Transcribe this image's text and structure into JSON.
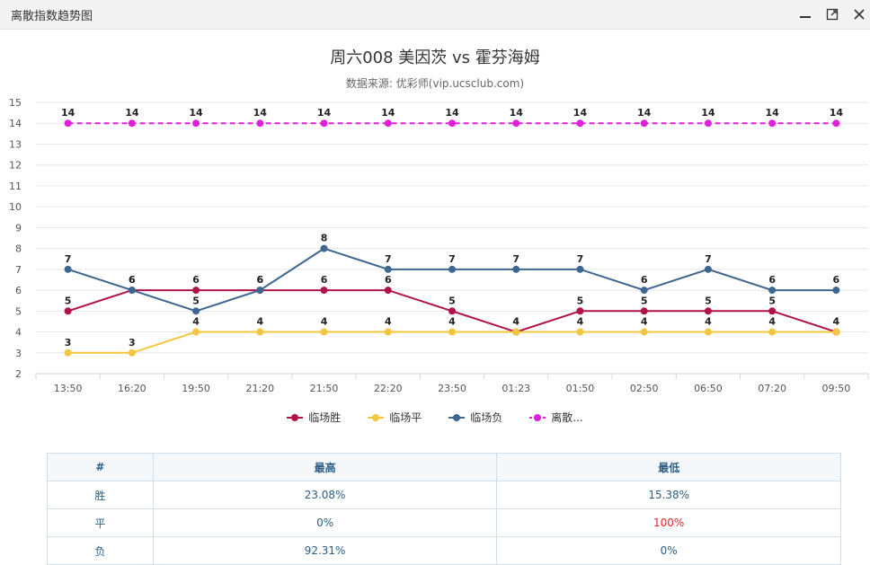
{
  "window": {
    "title": "离散指数趋势图"
  },
  "chart_data": {
    "type": "line",
    "title": "周六008 美因茨 vs 霍芬海姆",
    "subtitle": "数据来源: 优彩师(vip.ucsclub.com)",
    "x": [
      "13:50",
      "16:20",
      "19:50",
      "21:20",
      "21:50",
      "22:20",
      "23:50",
      "01:23",
      "01:50",
      "02:50",
      "06:50",
      "07:20",
      "09:50"
    ],
    "ylim": [
      2,
      15
    ],
    "yticks": [
      2,
      3,
      4,
      5,
      6,
      7,
      8,
      9,
      10,
      11,
      12,
      13,
      14,
      15
    ],
    "grid": true,
    "legend_position": "bottom",
    "series": [
      {
        "name": "临场胜",
        "color": "#b0124a",
        "dashed": false,
        "values": [
          5,
          6,
          6,
          6,
          6,
          6,
          5,
          4,
          5,
          5,
          5,
          5,
          4
        ]
      },
      {
        "name": "临场平",
        "color": "#f2c641",
        "dashed": false,
        "values": [
          3,
          3,
          4,
          4,
          4,
          4,
          4,
          4,
          4,
          4,
          4,
          4,
          4
        ]
      },
      {
        "name": "临场负",
        "color": "#3d6690",
        "dashed": false,
        "values": [
          7,
          6,
          5,
          6,
          8,
          7,
          7,
          7,
          7,
          6,
          7,
          6,
          6
        ]
      },
      {
        "name": "离散...",
        "color": "#e020d8",
        "dashed": true,
        "values": [
          14,
          14,
          14,
          14,
          14,
          14,
          14,
          14,
          14,
          14,
          14,
          14,
          14
        ]
      }
    ]
  },
  "table": {
    "headers": [
      "#",
      "最高",
      "最低"
    ],
    "rows": [
      {
        "label": "胜",
        "high": "23.08%",
        "low": "15.38%",
        "low_color": ""
      },
      {
        "label": "平",
        "high": "0%",
        "low": "100%",
        "low_color": "#e0282e"
      },
      {
        "label": "负",
        "high": "92.31%",
        "low": "0%",
        "low_color": ""
      }
    ]
  }
}
